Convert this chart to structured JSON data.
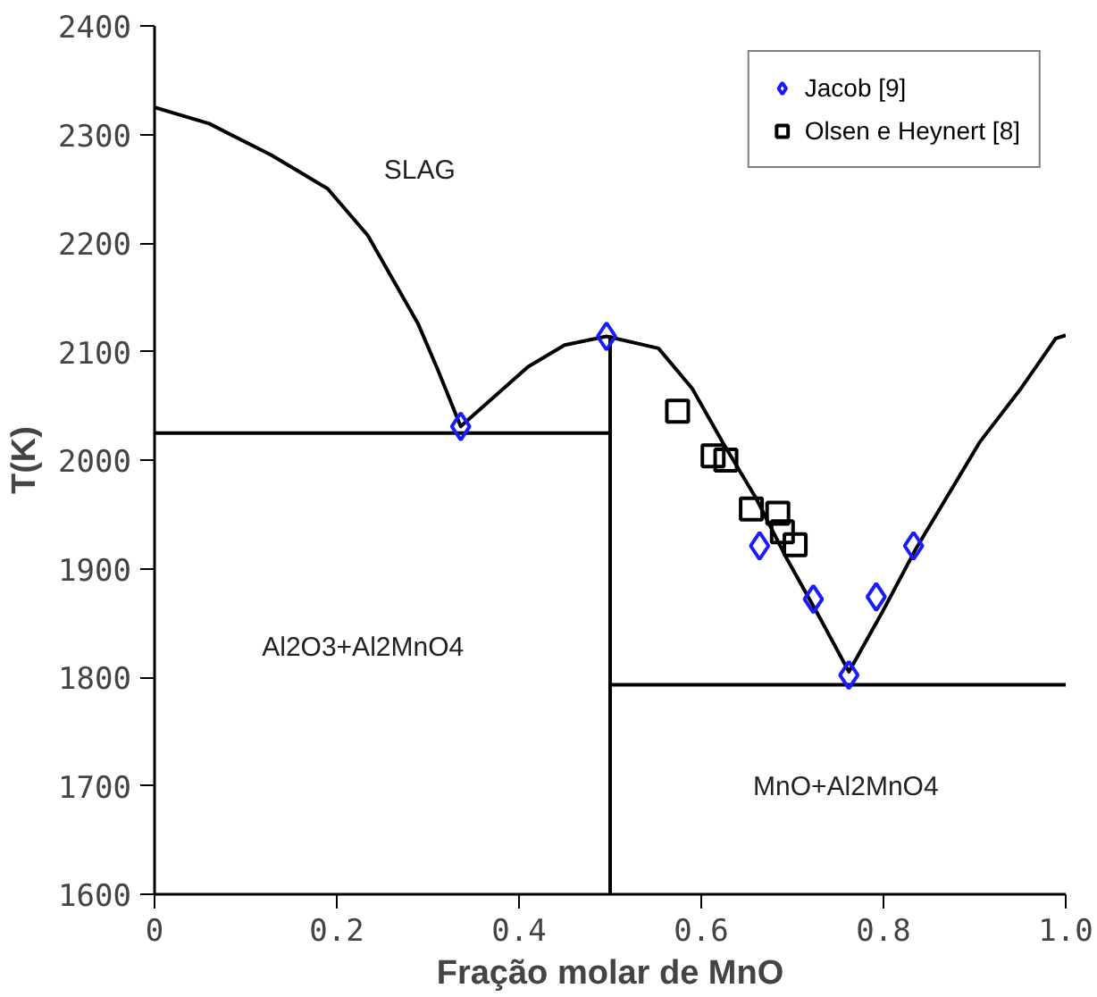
{
  "chart_data": {
    "type": "line",
    "xlabel": "Fração molar de MnO",
    "ylabel": "T(K)",
    "xlim": [
      0,
      1.0
    ],
    "ylim": [
      1600,
      2400
    ],
    "xticks": [
      {
        "value": 0,
        "label": "0"
      },
      0.2,
      0.4,
      0.6,
      0.8,
      {
        "value": 1.0,
        "label": "1.0"
      }
    ],
    "yticks": [
      1600,
      1700,
      1800,
      1900,
      2000,
      2100,
      2200,
      2300,
      2400
    ],
    "grid": false,
    "legend": "top right",
    "series": [
      {
        "color": "#000000",
        "x": [
          0,
          0.06,
          0.128,
          0.19,
          0.234,
          0.289,
          0.31,
          0.336,
          0.41,
          0.45,
          0.496,
          0.553,
          0.59,
          0.623,
          0.66,
          0.694,
          0.73,
          0.762,
          0.8,
          0.836,
          0.906,
          0.95,
          0.989,
          1.0
        ],
        "values": [
          2325,
          2310,
          2281,
          2250,
          2207,
          2126,
          2085,
          2031,
          2086,
          2106,
          2114,
          2103,
          2066,
          2017,
          1965,
          1909,
          1855,
          1805,
          1862,
          1919,
          2017,
          2065,
          2112,
          2115
        ]
      },
      {
        "color": "#000000",
        "x": [
          0,
          0.5
        ],
        "values": [
          2025,
          2025
        ]
      },
      {
        "color": "#000000",
        "x": [
          0.5,
          0.5
        ],
        "values": [
          1600,
          2115
        ]
      },
      {
        "color": "#000000",
        "x": [
          0.5,
          1.0
        ],
        "values": [
          1793,
          1793
        ]
      },
      {
        "type": "scatter",
        "name": "Jacob [9]",
        "marker": "diamond",
        "color": "#1a1aff",
        "x": [
          0.336,
          0.496,
          0.664,
          0.723,
          0.762,
          0.792,
          0.833
        ],
        "values": [
          2031,
          2114,
          1921,
          1872,
          1802,
          1874,
          1921
        ]
      },
      {
        "type": "scatter",
        "name": "Olsen e Heynert [8]",
        "marker": "square",
        "color": "#000000",
        "x": [
          0.574,
          0.613,
          0.627,
          0.655,
          0.684,
          0.689,
          0.703
        ],
        "values": [
          2045,
          2004,
          2000,
          1955,
          1951,
          1934,
          1922
        ]
      }
    ],
    "annotations": [
      "SLAG",
      "Al2O3+Al2MnO4",
      "MnO+Al2MnO4"
    ]
  }
}
